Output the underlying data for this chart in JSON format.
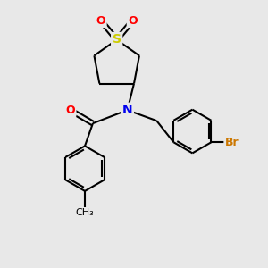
{
  "bg_color": "#e8e8e8",
  "bond_color": "#000000",
  "bond_width": 1.5,
  "atom_colors": {
    "N": "#0000ee",
    "O": "#ff0000",
    "S": "#cccc00",
    "Br": "#cc7700",
    "C": "#000000"
  },
  "font_size": 9,
  "figsize": [
    3.0,
    3.0
  ],
  "dpi": 100
}
